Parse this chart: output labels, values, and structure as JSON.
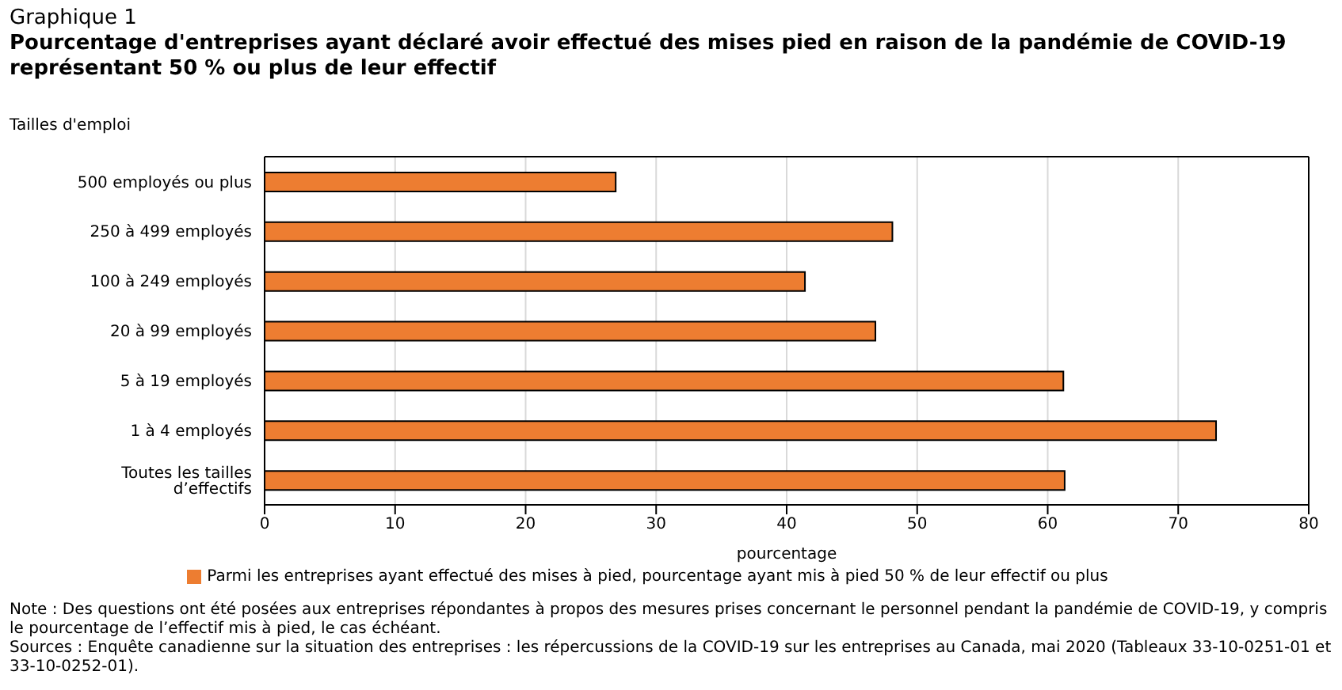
{
  "chart_data": {
    "type": "bar",
    "orientation": "horizontal",
    "title": "Graphique 1",
    "subtitle": "Pourcentage d'entreprises ayant déclaré avoir effectué des mises pied en raison de la pandémie de COVID-19 représentant 50 % ou plus de leur effectif",
    "ylabel": "Tailles d'emploi",
    "xlabel": "pourcentage",
    "categories": [
      "500 employés ou plus",
      "250 à 499 employés",
      "100 à 249 employés",
      "20 à 99 employés",
      "5 à 19 employés",
      "1 à 4 employés",
      "Toutes les tailles d’effectifs"
    ],
    "series": [
      {
        "name": "Parmi les entreprises ayant effectué des mises à pied, pourcentage ayant mis à pied 50 % de leur effectif ou plus",
        "color": "#ed7d31",
        "values": [
          26.9,
          48.1,
          41.4,
          46.8,
          61.2,
          72.9,
          61.3
        ]
      }
    ],
    "xlim": [
      0,
      80
    ],
    "xticks": [
      0,
      10,
      20,
      30,
      40,
      50,
      60,
      70,
      80
    ],
    "grid": "x",
    "legend": "bottom",
    "annotations": [
      "Note : Des questions ont été posées aux entreprises répondantes à propos des mesures prises concernant le personnel pendant la pandémie de COVID-19, y compris le pourcentage de l’effectif mis à pied, le cas échéant.",
      "Sources : Enquête canadienne sur la situation des entreprises : les répercussions de la COVID-19 sur les entreprises au Canada, mai 2020 (Tableaux 33-10-0251-01 et 33-10-0252-01)."
    ]
  }
}
